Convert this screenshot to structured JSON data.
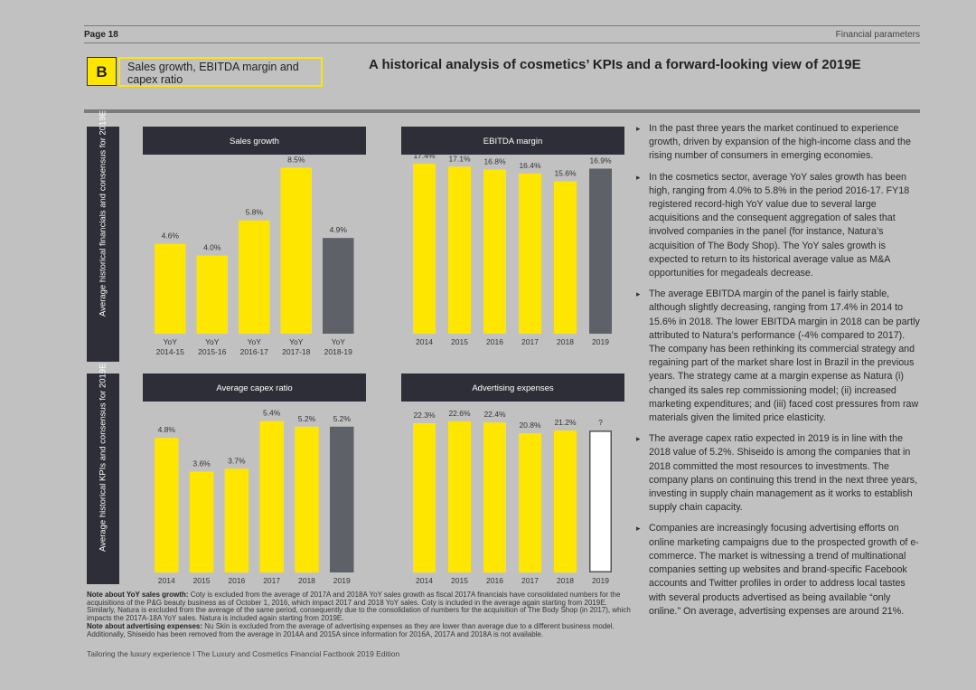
{
  "header": {
    "page": "Page 18",
    "section": "Financial parameters"
  },
  "badge": {
    "letter": "B",
    "title": "Sales growth, EBITDA margin and capex ratio"
  },
  "headline": "A historical analysis of cosmetics’ KPIs and a forward-looking view of 2019E",
  "sidebars": {
    "top": "Average historical financials and consensus for 2019E",
    "bottom": "Average historical KPIs and consensus for 2019E"
  },
  "colors": {
    "yellow": "#ffe600",
    "gray_bar": "#5e6268",
    "dark_header": "#2e2e38"
  },
  "chart_data": [
    {
      "type": "bar",
      "title": "Sales growth",
      "categories": [
        "YoY 2014-15",
        "YoY 2015-16",
        "YoY 2016-17",
        "YoY 2017-18",
        "YoY 2018-19"
      ],
      "values": [
        4.6,
        4.0,
        5.8,
        8.5,
        4.9
      ],
      "labels": [
        "4.6%",
        "4.0%",
        "5.8%",
        "8.5%",
        "4.9%"
      ],
      "estimate_index": [
        4
      ]
    },
    {
      "type": "bar",
      "title": "EBITDA margin",
      "categories": [
        "2014",
        "2015",
        "2016",
        "2017",
        "2018",
        "2019"
      ],
      "values": [
        17.4,
        17.1,
        16.8,
        16.4,
        15.6,
        16.9
      ],
      "labels": [
        "17.4%",
        "17.1%",
        "16.8%",
        "16.4%",
        "15.6%",
        "16.9%"
      ],
      "estimate_index": [
        5
      ]
    },
    {
      "type": "bar",
      "title": "Average capex ratio",
      "categories": [
        "2014",
        "2015",
        "2016",
        "2017",
        "2018",
        "2019"
      ],
      "values": [
        4.8,
        3.6,
        3.7,
        5.4,
        5.2,
        5.2
      ],
      "labels": [
        "4.8%",
        "3.6%",
        "3.7%",
        "5.4%",
        "5.2%",
        "5.2%"
      ],
      "estimate_index": [
        5
      ]
    },
    {
      "type": "bar",
      "title": "Advertising expenses",
      "categories": [
        "2014",
        "2015",
        "2016",
        "2017",
        "2018",
        "2019"
      ],
      "values": [
        22.3,
        22.6,
        22.4,
        20.8,
        21.2,
        21.2
      ],
      "labels": [
        "22.3%",
        "22.6%",
        "22.4%",
        "20.8%",
        "21.2%",
        "?"
      ],
      "estimate_index": [
        5
      ],
      "outline_index": [
        5
      ]
    }
  ],
  "notes": {
    "sales_label": "Note about YoY sales growth:",
    "sales_text": "Coty is excluded from the average of 2017A and 2018A YoY sales growth as fiscal 2017A financials have consolidated numbers for the acquisitions of the P&G beauty business as of October 1, 2016, which impact 2017 and 2018 YoY sales. Coty is included in the average again starting from 2019E. Similarly, Natura is excluded from the average of the same period, consequently due to the consolidation of numbers for the acquisition of The Body Shop (in 2017), which impacts the 2017A-18A YoY sales. Natura is included again starting from 2019E.",
    "adv_label": "Note about advertising expenses:",
    "adv_text": "Nu Skin is excluded from the average of advertising expenses as they are lower than average due to a different business model. Additionally, Shiseido has been removed from the average in 2014A and 2015A since information for 2016A, 2017A and 2018A is not available."
  },
  "footer": "Tailoring the luxury experience I The Luxury and Cosmetics Financial Factbook 2019 Edition",
  "bullets": [
    "In the past three years the market continued to experience growth, driven by expansion of the high-income class and the rising number of consumers in emerging economies.",
    "In the cosmetics sector, average YoY sales growth has been high, ranging from 4.0% to 5.8% in the period 2016-17. FY18 registered record-high YoY value due to several large acquisitions and the consequent aggregation of sales that involved companies in the panel (for instance, Natura’s acquisition of The Body Shop). The YoY sales growth is expected to return to its historical average value as M&A opportunities for megadeals decrease.",
    "The average EBITDA margin of the panel is fairly stable, although slightly decreasing, ranging from 17.4% in 2014 to 15.6% in 2018. The lower EBITDA margin in 2018 can be partly attributed to Natura’s performance (-4% compared to 2017). The company has been rethinking its commercial strategy and regaining part of the market share lost in Brazil in the previous years. The strategy came at a margin expense as Natura (i) changed its sales rep commissioning model; (ii) increased marketing expenditures; and (iii) faced cost pressures from raw materials given the limited price elasticity.",
    "The average capex ratio expected in 2019 is in line with the 2018 value of 5.2%. Shiseido is among the companies that in 2018 committed the most resources to investments. The company plans on continuing this trend in the next three years, investing in supply chain management as it works to establish supply chain capacity.",
    "Companies are increasingly focusing advertising efforts on online marketing campaigns due to the prospected growth of e-commerce. The market is witnessing a trend of multinational companies setting up websites and brand-specific Facebook accounts and Twitter profiles in order to address local tastes with several products advertised as being available “only online.” On average, advertising expenses are around 21%."
  ]
}
